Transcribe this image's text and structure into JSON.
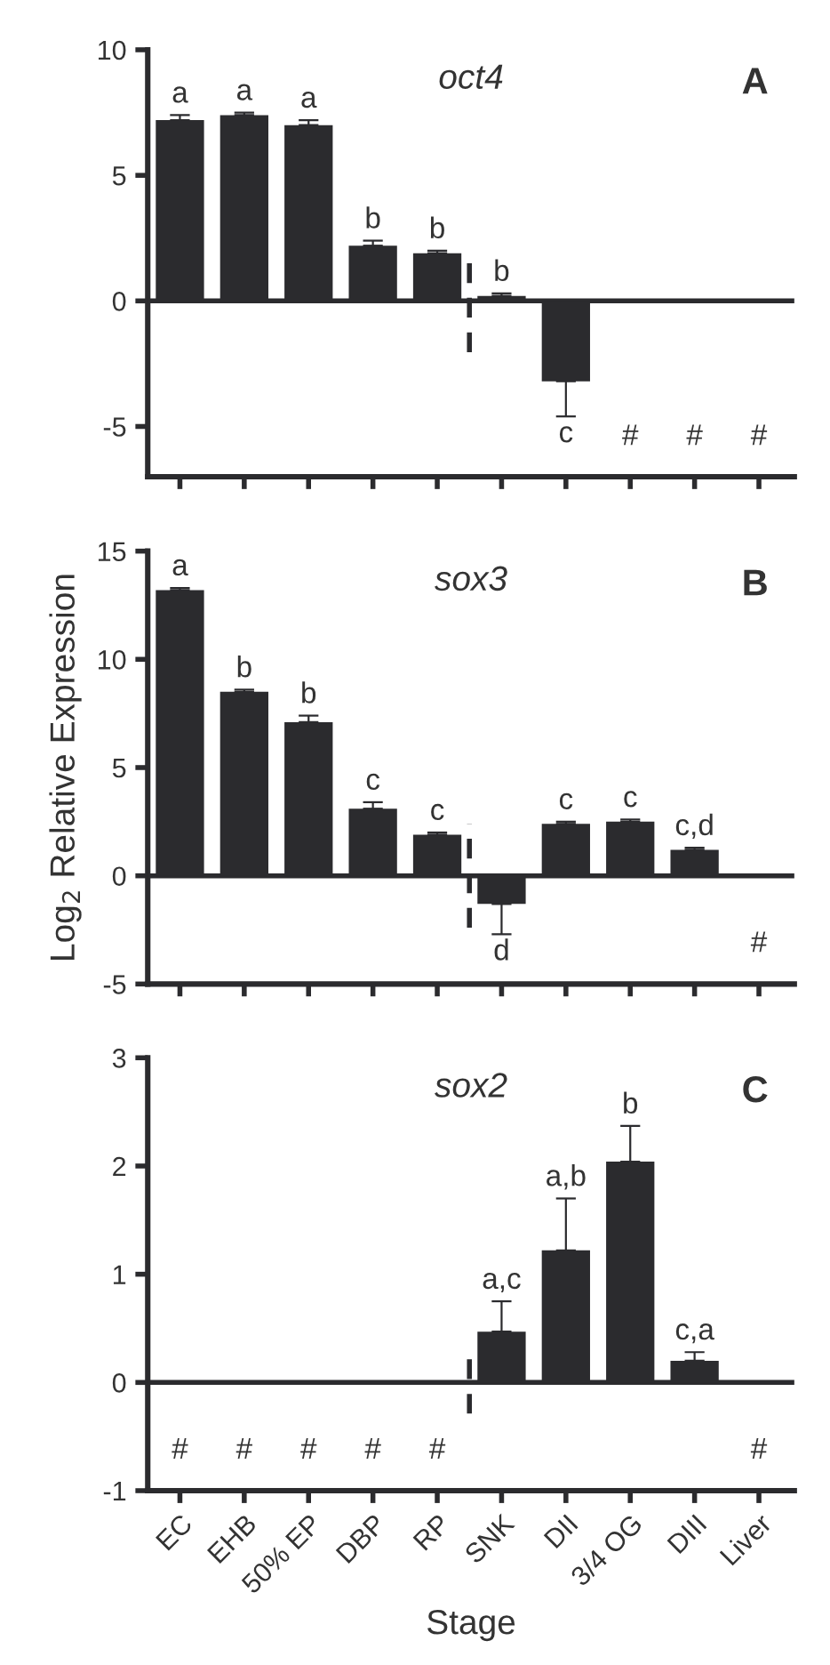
{
  "chart_data": [
    {
      "type": "bar",
      "title": "oct4",
      "categories": [
        null,
        null,
        null,
        null,
        null,
        null,
        null,
        null,
        null,
        null
      ],
      "values": [
        7.2,
        7.4,
        7.0,
        2.2,
        1.9,
        0.2,
        -3.2,
        null,
        null,
        null
      ],
      "errors": [
        [
          7.2,
          7.4
        ],
        [
          7.4,
          7.5
        ],
        [
          7.0,
          7.2
        ],
        [
          2.2,
          2.4
        ],
        [
          1.9,
          2.0
        ],
        [
          0.2,
          0.3
        ],
        [
          -4.6,
          -3.2
        ],
        null,
        null,
        null
      ],
      "color": "#2b2b2e",
      "ylim": [
        -7,
        10
      ],
      "yticks": [
        -5,
        0,
        5,
        10
      ],
      "tick_labels": "y",
      "ref_lines": [
        {
          "axis": "y",
          "value": 0,
          "color": "#2b2b2e",
          "line_style": "solid"
        }
      ],
      "annotations": [
        "A",
        "a",
        "a",
        "a",
        "b",
        "b",
        "b",
        "c",
        "#",
        "#",
        "#"
      ]
    },
    {
      "type": "bar",
      "title": "sox3",
      "ylabel": "Log$_{2}$ Relative Expression",
      "categories": [
        null,
        null,
        null,
        null,
        null,
        null,
        null,
        null,
        null,
        null
      ],
      "values": [
        13.2,
        8.5,
        7.1,
        3.1,
        1.9,
        -1.3,
        2.4,
        2.5,
        1.2,
        null
      ],
      "errors": [
        [
          13.2,
          13.3
        ],
        [
          8.5,
          8.6
        ],
        [
          7.1,
          7.4
        ],
        [
          3.1,
          3.4
        ],
        [
          1.9,
          2.0
        ],
        [
          -2.7,
          -1.3
        ],
        [
          2.4,
          2.5
        ],
        [
          2.5,
          2.6
        ],
        [
          1.2,
          1.3
        ],
        null
      ],
      "color": "#2b2b2e",
      "ylim": [
        -5,
        15
      ],
      "yticks": [
        -5,
        0,
        5,
        10,
        15
      ],
      "tick_labels": "y",
      "ref_lines": [
        {
          "axis": "y",
          "value": 0,
          "color": "#2b2b2e",
          "line_style": "solid"
        }
      ],
      "annotations": [
        "B",
        "a",
        "b",
        "b",
        "c",
        "c",
        "d",
        "c",
        "c",
        "c,d",
        "#"
      ]
    },
    {
      "type": "bar",
      "title": "sox2",
      "xlabel": "Stage",
      "categories": [
        "EC",
        "EHB",
        "50% EP",
        "DBP",
        "RP",
        "SNK",
        "DII",
        "3/4 OG",
        "DIII",
        "Liver"
      ],
      "values": [
        null,
        null,
        null,
        null,
        null,
        0.47,
        1.22,
        2.04,
        0.2,
        null
      ],
      "errors": [
        null,
        null,
        null,
        null,
        null,
        [
          0.47,
          0.75
        ],
        [
          1.22,
          1.7
        ],
        [
          2.04,
          2.37
        ],
        [
          0.2,
          0.28
        ],
        null
      ],
      "color": "#2b2b2e",
      "ylim": [
        -1,
        3
      ],
      "yticks": [
        -1,
        0,
        1,
        2,
        3
      ],
      "ref_lines": [
        {
          "axis": "y",
          "value": 0,
          "color": "#2b2b2e",
          "line_style": "solid"
        }
      ],
      "annotations": [
        "C",
        "#",
        "#",
        "#",
        "#",
        "#",
        "a,c",
        "a,b",
        "b",
        "c,a",
        "#"
      ]
    }
  ]
}
